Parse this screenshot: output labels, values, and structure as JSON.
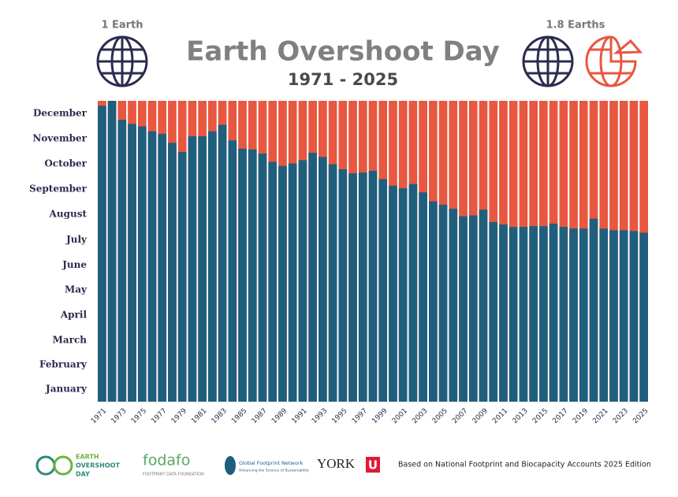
{
  "chart_data": {
    "type": "bar",
    "title": "Earth Overshoot Day",
    "subtitle": "1971 - 2025",
    "annotations": [
      "1 Earth",
      "1.8 Earths"
    ],
    "source": "Based on National Footprint and Biocapacity Accounts 2025 Edition",
    "logos": [
      "EARTH",
      "OVERSHOOT",
      "DAY",
      "fodafo",
      "FOOTPRINT DATA FOUNDATION",
      "Global Footprint Network",
      "Advancing the Science of Sustainability",
      "YORK",
      "U"
    ],
    "categories": [
      "1971",
      null,
      "1973",
      null,
      "1975",
      null,
      "1977",
      null,
      "1979",
      null,
      "1981",
      null,
      "1983",
      null,
      "1985",
      null,
      "1987",
      null,
      "1989",
      null,
      "1991",
      null,
      "1993",
      null,
      "1995",
      null,
      "1997",
      null,
      "1999",
      null,
      "2001",
      null,
      "2003",
      null,
      "2005",
      null,
      "2007",
      null,
      "2009",
      null,
      "2011",
      null,
      "2013",
      null,
      "2015",
      null,
      "2017",
      null,
      "2019",
      null,
      "2021",
      null,
      "2023",
      null,
      "2025"
    ],
    "values": [
      359,
      365,
      342,
      337,
      334,
      328,
      325,
      314,
      303,
      322,
      322,
      328,
      336,
      317,
      307,
      306,
      301,
      291,
      286,
      289,
      293,
      302,
      297,
      288,
      282,
      277,
      278,
      280,
      270,
      262,
      259,
      264,
      254,
      243,
      239,
      234,
      225,
      226,
      233,
      218,
      215,
      212,
      212,
      213,
      213,
      216,
      212,
      210,
      210,
      222,
      210,
      208,
      208,
      207,
      205
    ],
    "color": "#1f5f7e",
    "background_color": "#e8573f",
    "ylim": [
      0,
      365
    ],
    "yticks": [
      {
        "value": 15.5,
        "label": "January"
      },
      {
        "value": 45,
        "label": "February"
      },
      {
        "value": 74.5,
        "label": "March"
      },
      {
        "value": 105,
        "label": "April"
      },
      {
        "value": 135.5,
        "label": "May"
      },
      {
        "value": 166,
        "label": "June"
      },
      {
        "value": 196.5,
        "label": "July"
      },
      {
        "value": 227.5,
        "label": "August"
      },
      {
        "value": 258,
        "label": "September"
      },
      {
        "value": 288.5,
        "label": "October"
      },
      {
        "value": 319,
        "label": "November"
      },
      {
        "value": 349.5,
        "label": "December"
      }
    ]
  }
}
